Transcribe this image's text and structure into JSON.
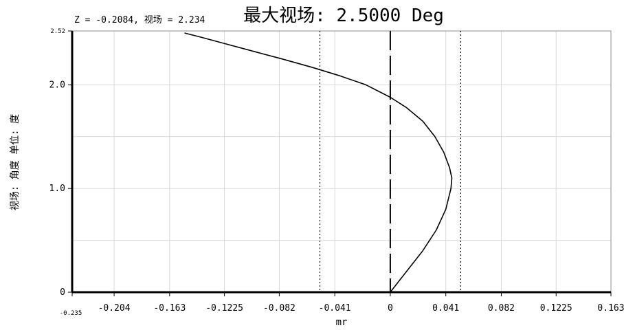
{
  "chart_data": {
    "type": "line",
    "title": "最大视场: 2.5000 Deg",
    "readout": "Z = -0.2084, 视场 = 2.234",
    "xlabel": "mr",
    "ylabel": "视场: 角度 单位: 度",
    "xlim": [
      -0.235,
      0.163
    ],
    "ylim": [
      0,
      2.52
    ],
    "x_ticks": [
      {
        "value": -0.235,
        "label": "-0.235",
        "small": true
      },
      {
        "value": -0.204,
        "label": "-0.204"
      },
      {
        "value": -0.163,
        "label": "-0.163"
      },
      {
        "value": -0.1225,
        "label": "-0.1225"
      },
      {
        "value": -0.082,
        "label": "-0.082"
      },
      {
        "value": -0.041,
        "label": "-0.041"
      },
      {
        "value": 0,
        "label": "0"
      },
      {
        "value": 0.041,
        "label": "0.041"
      },
      {
        "value": 0.082,
        "label": "0.082"
      },
      {
        "value": 0.1225,
        "label": "0.1225"
      },
      {
        "value": 0.163,
        "label": "0.163"
      }
    ],
    "y_ticks": [
      {
        "value": 0,
        "label": "0"
      },
      {
        "value": 1.0,
        "label": "1.0"
      },
      {
        "value": 2.0,
        "label": "2.0"
      },
      {
        "value": 2.52,
        "label": "2.52",
        "small": true
      }
    ],
    "grid": true,
    "reference_lines": [
      {
        "x": 0,
        "style": "dashed"
      },
      {
        "x": -0.052,
        "style": "dotted"
      },
      {
        "x": 0.052,
        "style": "dotted"
      }
    ],
    "series": [
      {
        "x": [
          0,
          0.012,
          0.024,
          0.034,
          0.041,
          0.0448,
          0.0455,
          0.0438,
          0.0395,
          0.033,
          0.024,
          0.012,
          0,
          -0.018,
          -0.038,
          -0.058,
          -0.08,
          -0.1,
          -0.12,
          -0.14,
          -0.152
        ],
        "y": [
          0,
          0.2,
          0.4,
          0.6,
          0.8,
          1.0,
          1.1,
          1.2,
          1.35,
          1.5,
          1.65,
          1.78,
          1.88,
          2.0,
          2.09,
          2.17,
          2.25,
          2.32,
          2.39,
          2.46,
          2.5
        ]
      }
    ]
  }
}
